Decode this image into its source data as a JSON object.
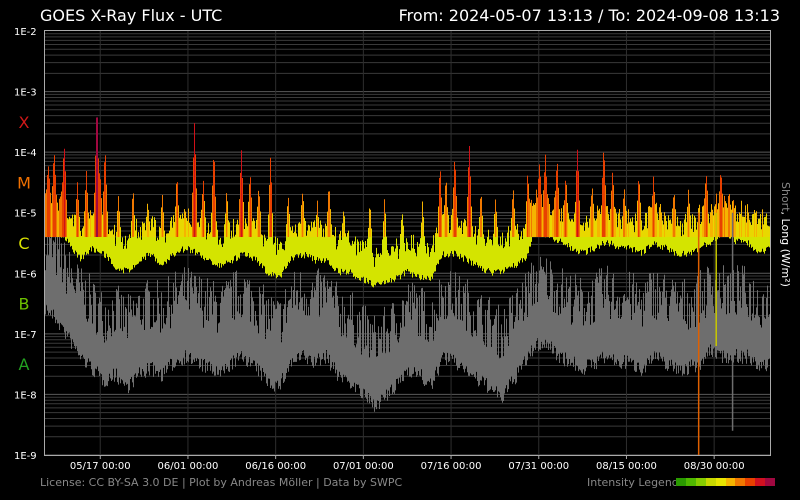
{
  "header": {
    "title": "GOES X-Ray Flux - UTC",
    "range": "From: 2024-05-07 13:13  /  To: 2024-09-08 13:13"
  },
  "footer": {
    "credits": "License: CC BY-SA 3.0 DE | Plot by Andreas Möller | Data by SWPC",
    "legend_label": "Intensity Legend",
    "legend_colors": [
      "#2a9a00",
      "#4fb800",
      "#86cc00",
      "#c8d800",
      "#e8e400",
      "#f5b400",
      "#f07800",
      "#e84000",
      "#d01020",
      "#a00840"
    ]
  },
  "chart_data": {
    "type": "line",
    "title": "GOES X-Ray Flux - UTC",
    "ylabel_short": "Short",
    "ylabel_long": ", Long (W/m²)",
    "yscale": "log",
    "ylim": [
      1e-09,
      0.01
    ],
    "y_ticks": [
      "1E-2",
      "1E-3",
      "1E-4",
      "1E-5",
      "1E-6",
      "1E-7",
      "1E-8",
      "1E-9"
    ],
    "flare_classes": [
      {
        "label": "X",
        "color": "#d01818",
        "center": -3.5
      },
      {
        "label": "M",
        "color": "#f07000",
        "center": -4.5
      },
      {
        "label": "C",
        "color": "#d8e000",
        "center": -5.5
      },
      {
        "label": "B",
        "color": "#6cc000",
        "center": -6.5
      },
      {
        "label": "A",
        "color": "#22a020",
        "center": -7.5
      }
    ],
    "x_range": [
      "2024-05-07 13:13",
      "2024-09-08 13:13"
    ],
    "x_ticks": [
      {
        "label": "05/17 00:00",
        "day": 9.45
      },
      {
        "label": "06/01 00:00",
        "day": 24.45
      },
      {
        "label": "06/16 00:00",
        "day": 39.45
      },
      {
        "label": "07/01 00:00",
        "day": 54.45
      },
      {
        "label": "07/16 00:00",
        "day": 69.45
      },
      {
        "label": "07/31 00:00",
        "day": 84.45
      },
      {
        "label": "08/15 00:00",
        "day": 99.45
      },
      {
        "label": "08/30 00:00",
        "day": 114.45
      }
    ],
    "grid": true,
    "series": [
      {
        "name": "Long",
        "color_mode": "intensity",
        "baseline_log10": [
          [
            0,
            -5.0
          ],
          [
            2,
            -5.1
          ],
          [
            4,
            -5.3
          ],
          [
            6,
            -5.6
          ],
          [
            8,
            -5.4
          ],
          [
            10,
            -5.5
          ],
          [
            12,
            -5.7
          ],
          [
            14,
            -5.8
          ],
          [
            16,
            -5.6
          ],
          [
            18,
            -5.5
          ],
          [
            20,
            -5.7
          ],
          [
            22,
            -5.5
          ],
          [
            24,
            -5.4
          ],
          [
            26,
            -5.5
          ],
          [
            28,
            -5.6
          ],
          [
            30,
            -5.7
          ],
          [
            32,
            -5.6
          ],
          [
            34,
            -5.5
          ],
          [
            36,
            -5.6
          ],
          [
            38,
            -5.8
          ],
          [
            40,
            -5.9
          ],
          [
            42,
            -5.6
          ],
          [
            44,
            -5.5
          ],
          [
            46,
            -5.6
          ],
          [
            48,
            -5.6
          ],
          [
            50,
            -5.8
          ],
          [
            52,
            -5.8
          ],
          [
            54,
            -5.9
          ],
          [
            56,
            -6.0
          ],
          [
            58,
            -6.0
          ],
          [
            60,
            -5.9
          ],
          [
            62,
            -5.8
          ],
          [
            64,
            -5.9
          ],
          [
            66,
            -5.9
          ],
          [
            68,
            -5.5
          ],
          [
            70,
            -5.5
          ],
          [
            72,
            -5.6
          ],
          [
            74,
            -5.7
          ],
          [
            76,
            -5.8
          ],
          [
            78,
            -5.8
          ],
          [
            80,
            -5.7
          ],
          [
            82,
            -5.6
          ],
          [
            84,
            -5.1
          ],
          [
            86,
            -5.2
          ],
          [
            88,
            -5.3
          ],
          [
            90,
            -5.4
          ],
          [
            92,
            -5.5
          ],
          [
            94,
            -5.4
          ],
          [
            96,
            -5.3
          ],
          [
            98,
            -5.4
          ],
          [
            100,
            -5.4
          ],
          [
            102,
            -5.5
          ],
          [
            104,
            -5.3
          ],
          [
            106,
            -5.4
          ],
          [
            108,
            -5.5
          ],
          [
            110,
            -5.5
          ],
          [
            112,
            -5.4
          ],
          [
            114,
            -5.3
          ],
          [
            116,
            -5.1
          ],
          [
            118,
            -5.3
          ],
          [
            120,
            -5.3
          ],
          [
            122,
            -5.5
          ],
          [
            124,
            -5.4
          ]
        ],
        "peaks_log10": [
          [
            0.5,
            -4.2
          ],
          [
            1.5,
            -4.0
          ],
          [
            3.2,
            -3.8
          ],
          [
            5.5,
            -4.5
          ],
          [
            7.0,
            -4.3
          ],
          [
            8.8,
            -3.1
          ],
          [
            9.3,
            -4.2
          ],
          [
            10.2,
            -3.9
          ],
          [
            12.5,
            -4.7
          ],
          [
            15.0,
            -4.6
          ],
          [
            17.5,
            -4.8
          ],
          [
            20.0,
            -4.7
          ],
          [
            22.5,
            -4.4
          ],
          [
            25.5,
            -3.5
          ],
          [
            27.0,
            -4.4
          ],
          [
            28.8,
            -3.9
          ],
          [
            31.0,
            -4.6
          ],
          [
            33.5,
            -3.9
          ],
          [
            35.0,
            -4.3
          ],
          [
            36.5,
            -4.5
          ],
          [
            38.5,
            -4.0
          ],
          [
            41.5,
            -4.7
          ],
          [
            44.0,
            -4.6
          ],
          [
            46.5,
            -4.8
          ],
          [
            48.5,
            -4.5
          ],
          [
            51.0,
            -4.9
          ],
          [
            55.5,
            -4.8
          ],
          [
            58.0,
            -4.7
          ],
          [
            61.0,
            -4.9
          ],
          [
            64.5,
            -4.8
          ],
          [
            67.5,
            -4.2
          ],
          [
            68.5,
            -4.4
          ],
          [
            70.0,
            -4.0
          ],
          [
            72.5,
            -3.8
          ],
          [
            74.5,
            -4.6
          ],
          [
            77.0,
            -4.7
          ],
          [
            80.0,
            -4.5
          ],
          [
            82.5,
            -4.3
          ],
          [
            84.5,
            -4.2
          ],
          [
            85.5,
            -4.0
          ],
          [
            87.5,
            -4.1
          ],
          [
            89.0,
            -4.4
          ],
          [
            91.0,
            -3.9
          ],
          [
            93.5,
            -4.5
          ],
          [
            95.5,
            -3.9
          ],
          [
            97.0,
            -4.3
          ],
          [
            99.0,
            -4.6
          ],
          [
            101.5,
            -4.3
          ],
          [
            104.0,
            -4.4
          ],
          [
            107.5,
            -4.6
          ],
          [
            110.0,
            -4.6
          ],
          [
            113.0,
            -4.3
          ],
          [
            115.5,
            -4.3
          ],
          [
            117.0,
            -4.7
          ],
          [
            119.0,
            -5.0
          ],
          [
            121.5,
            -4.9
          ],
          [
            123.0,
            -5.2
          ]
        ]
      },
      {
        "name": "Short",
        "color": "#6e6e6e",
        "baseline_log10": [
          [
            0,
            -6.3
          ],
          [
            2,
            -6.5
          ],
          [
            4,
            -6.8
          ],
          [
            6,
            -7.1
          ],
          [
            8,
            -7.3
          ],
          [
            10,
            -7.5
          ],
          [
            12,
            -7.4
          ],
          [
            14,
            -7.6
          ],
          [
            16,
            -7.4
          ],
          [
            18,
            -7.3
          ],
          [
            20,
            -7.4
          ],
          [
            22,
            -7.2
          ],
          [
            24,
            -7.1
          ],
          [
            26,
            -7.2
          ],
          [
            28,
            -7.3
          ],
          [
            30,
            -7.4
          ],
          [
            32,
            -7.2
          ],
          [
            34,
            -7.1
          ],
          [
            36,
            -7.3
          ],
          [
            38,
            -7.5
          ],
          [
            40,
            -7.6
          ],
          [
            42,
            -7.2
          ],
          [
            44,
            -7.1
          ],
          [
            46,
            -7.2
          ],
          [
            48,
            -7.1
          ],
          [
            50,
            -7.4
          ],
          [
            52,
            -7.5
          ],
          [
            54,
            -7.7
          ],
          [
            56,
            -7.9
          ],
          [
            58,
            -7.8
          ],
          [
            60,
            -7.6
          ],
          [
            62,
            -7.3
          ],
          [
            64,
            -7.4
          ],
          [
            66,
            -7.6
          ],
          [
            68,
            -7.1
          ],
          [
            70,
            -7.2
          ],
          [
            72,
            -7.3
          ],
          [
            74,
            -7.5
          ],
          [
            76,
            -7.6
          ],
          [
            78,
            -7.8
          ],
          [
            80,
            -7.5
          ],
          [
            82,
            -7.2
          ],
          [
            84,
            -6.9
          ],
          [
            86,
            -6.9
          ],
          [
            88,
            -7.1
          ],
          [
            90,
            -7.2
          ],
          [
            92,
            -7.3
          ],
          [
            94,
            -7.2
          ],
          [
            96,
            -7.1
          ],
          [
            98,
            -7.2
          ],
          [
            100,
            -7.2
          ],
          [
            102,
            -7.3
          ],
          [
            104,
            -7.1
          ],
          [
            106,
            -7.2
          ],
          [
            108,
            -7.3
          ],
          [
            110,
            -7.3
          ],
          [
            112,
            -7.2
          ],
          [
            114,
            -7.0
          ],
          [
            116,
            -7.1
          ],
          [
            118,
            -7.1
          ],
          [
            120,
            -7.1
          ],
          [
            122,
            -7.3
          ],
          [
            124,
            -7.2
          ]
        ],
        "spikes": [
          {
            "day": 111.8,
            "low_log10": -9.0,
            "color": "#e06000"
          },
          {
            "day": 114.8,
            "low_log10": -7.2,
            "color": "#c8c800"
          },
          {
            "day": 117.6,
            "low_log10": -8.6,
            "color": "#6e6e6e"
          }
        ]
      }
    ]
  }
}
